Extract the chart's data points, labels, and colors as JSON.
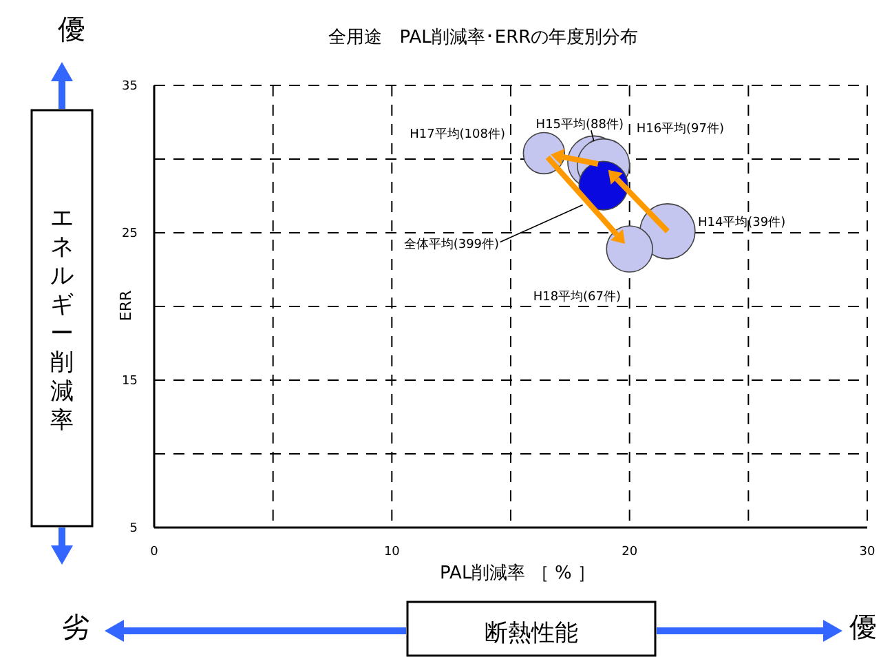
{
  "chart_data": {
    "type": "bubble",
    "title": "全用途　PAL削減率･ERRの年度別分布",
    "xlabel": "PAL削減率 ［ % ］",
    "ylabel": "ERR",
    "xlim": [
      0,
      30
    ],
    "ylim": [
      5,
      35
    ],
    "xticks": [
      0,
      {
        "value": 5,
        "label": null
      },
      10,
      {
        "value": 15,
        "label": null
      },
      20,
      {
        "value": 25,
        "label": null
      },
      30
    ],
    "yticks": [
      5,
      {
        "value": 10,
        "label": null
      },
      15,
      {
        "value": 20,
        "label": null
      },
      25,
      {
        "value": 30,
        "label": null
      },
      35
    ],
    "grid": true,
    "legend": false,
    "series": [
      {
        "name": "H14平均(39件)",
        "color": "#c4c6f0",
        "x": [
          21.6
        ],
        "values": [
          25.1
        ],
        "sizes": [
          1
        ]
      },
      {
        "name": "H15平均(88件)",
        "color": "#c4c6f0",
        "x": [
          18.5
        ],
        "values": [
          29.8
        ],
        "sizes": [
          0.9
        ]
      },
      {
        "name": "H16平均(97件)",
        "color": "#c4c6f0",
        "x": [
          18.9
        ],
        "values": [
          29.6
        ],
        "sizes": [
          0.9
        ]
      },
      {
        "name": "H17平均(108件)",
        "color": "#c4c6f0",
        "x": [
          16.4
        ],
        "values": [
          30.4
        ],
        "sizes": [
          0.56
        ]
      },
      {
        "name": "H18平均(67件)",
        "color": "#c4c6f0",
        "x": [
          20.0
        ],
        "values": [
          23.9
        ],
        "sizes": [
          0.7
        ]
      },
      {
        "name": "全体平均(399件)",
        "color": "#0a0ae0",
        "x": [
          18.9
        ],
        "values": [
          28.2
        ],
        "sizes": [
          0.78
        ]
      }
    ],
    "annotations": [
      "優",
      "エネルギー削減率",
      "劣",
      "断熱性能",
      "優"
    ]
  }
}
